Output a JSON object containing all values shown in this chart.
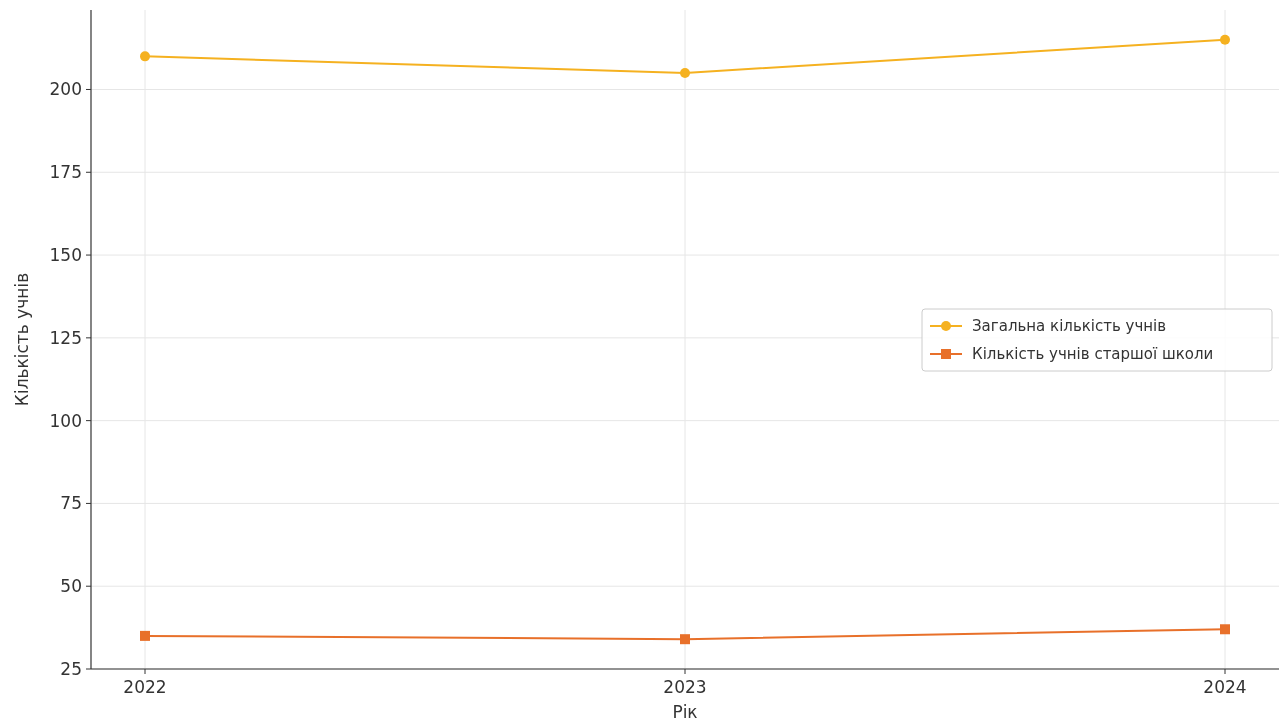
{
  "chart_data": {
    "type": "line",
    "xlabel": "Рік",
    "ylabel": "Кількість учнів",
    "x": [
      2022,
      2023,
      2024
    ],
    "xlim": [
      2021.9,
      2024.1
    ],
    "xticks": [
      2022,
      2023,
      2024
    ],
    "ylim": [
      25,
      224
    ],
    "yticks": [
      25,
      50,
      75,
      100,
      125,
      150,
      175,
      200
    ],
    "grid": true,
    "legend": "right",
    "series": [
      {
        "name": "Загальна кількість учнів",
        "color": "#f5b120",
        "marker": "circle",
        "values": [
          210,
          205,
          215
        ]
      },
      {
        "name": "Кількість учнів старшої школи",
        "color": "#e8702a",
        "marker": "square",
        "values": [
          35,
          34,
          37
        ]
      }
    ]
  }
}
